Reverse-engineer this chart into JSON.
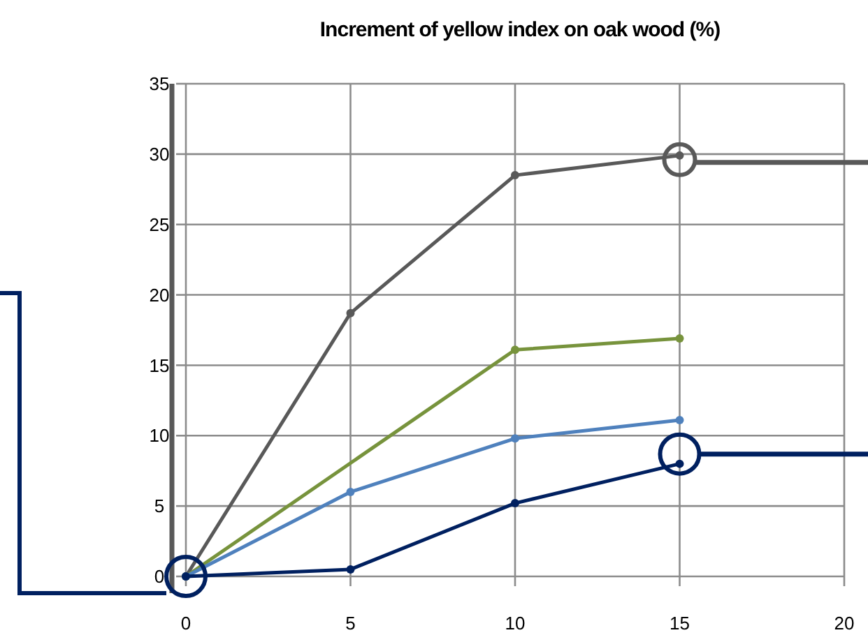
{
  "chart_data": {
    "type": "line",
    "title": "Increment of yellow index on oak wood (%)",
    "x": [
      0,
      5,
      10,
      15
    ],
    "series": [
      {
        "color": "#595959",
        "values": [
          0,
          18.7,
          28.5,
          29.9
        ]
      },
      {
        "color": "#77933c",
        "x": [
          0,
          10,
          15
        ],
        "values": [
          0,
          16.1,
          16.9
        ]
      },
      {
        "color": "#4f81bd",
        "values": [
          0,
          6.0,
          9.8,
          11.1
        ]
      },
      {
        "color": "#002060",
        "values": [
          0,
          0.5,
          5.2,
          8.0
        ]
      }
    ],
    "xlim": [
      0,
      20
    ],
    "xticks": [
      0,
      5,
      10,
      15,
      20
    ],
    "ylim": [
      0,
      35
    ],
    "yticks": [
      0,
      5,
      10,
      15,
      20,
      25,
      30,
      35
    ],
    "grid": true,
    "marker": "circle",
    "line_style": "solid"
  }
}
